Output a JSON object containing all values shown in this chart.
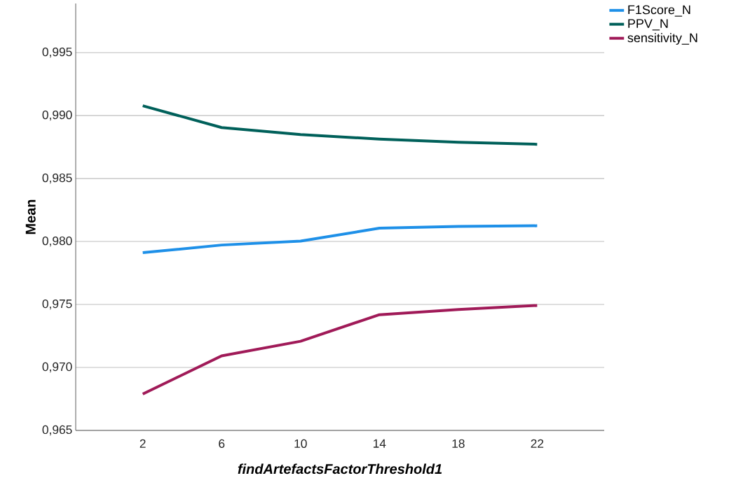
{
  "chart_data": {
    "type": "line",
    "xlabel": "findArtefactsFactorThreshold1",
    "ylabel": "Mean",
    "x": [
      2,
      6,
      10,
      14,
      18,
      22
    ],
    "series": [
      {
        "name": "F1Score_N",
        "color": "#1e90e8",
        "values": [
          0.97911,
          0.97972,
          0.98003,
          0.98106,
          0.9812,
          0.98125
        ]
      },
      {
        "name": "PPV_N",
        "color": "#00605a",
        "values": [
          0.99078,
          0.98905,
          0.9885,
          0.98813,
          0.98788,
          0.98772
        ]
      },
      {
        "name": "sensitivity_N",
        "color": "#a01a58",
        "values": [
          0.96789,
          0.97092,
          0.97208,
          0.97419,
          0.9746,
          0.97492
        ]
      }
    ],
    "xlim": [
      -1.4,
      25.4
    ],
    "xticks": [
      2,
      6,
      10,
      14,
      18,
      22
    ],
    "ylim": [
      0.965,
      0.9989
    ],
    "yticks": [
      {
        "value": 0.965,
        "label": "0,965"
      },
      {
        "value": 0.97,
        "label": "0,970"
      },
      {
        "value": 0.975,
        "label": "0,975"
      },
      {
        "value": 0.98,
        "label": "0,980"
      },
      {
        "value": 0.985,
        "label": "0,985"
      },
      {
        "value": 0.99,
        "label": "0,990"
      },
      {
        "value": 0.995,
        "label": "0,995"
      }
    ],
    "grid": "y",
    "legend": "top right"
  }
}
